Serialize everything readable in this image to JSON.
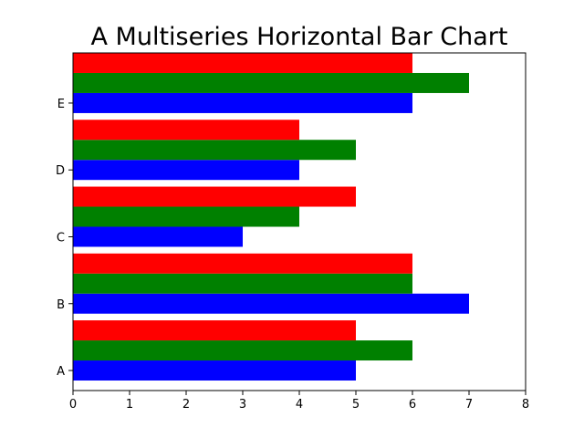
{
  "chart_data": {
    "type": "bar",
    "orientation": "horizontal",
    "title": "A Multiseries Horizontal Bar Chart",
    "xlabel": "",
    "ylabel": "",
    "categories": [
      "A",
      "B",
      "C",
      "D",
      "E"
    ],
    "xlim": [
      0,
      8
    ],
    "x_ticks": [
      "0",
      "1",
      "2",
      "3",
      "4",
      "5",
      "6",
      "7",
      "8"
    ],
    "grid": false,
    "legend": "none",
    "series": [
      {
        "color": "#0000ff",
        "values": [
          5,
          7,
          3,
          4,
          6
        ]
      },
      {
        "color": "#008000",
        "values": [
          6,
          6,
          4,
          5,
          7
        ]
      },
      {
        "color": "#ff0000",
        "values": [
          5,
          6,
          5,
          4,
          6
        ]
      }
    ]
  }
}
